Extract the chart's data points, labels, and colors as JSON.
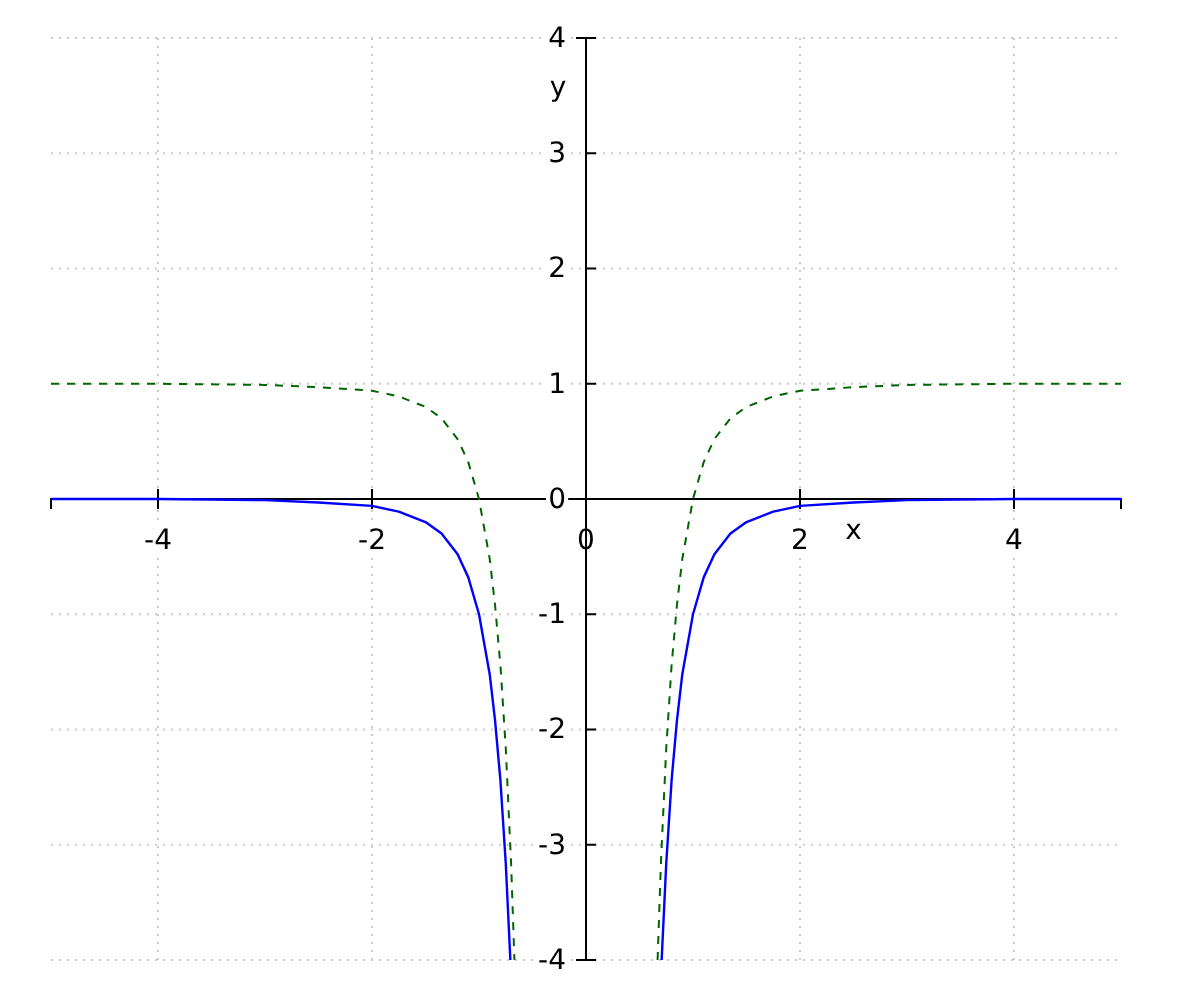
{
  "chart_data": {
    "type": "line",
    "xlabel": "x",
    "ylabel": "y",
    "xlim": [
      -5,
      5
    ],
    "ylim": [
      -4,
      4
    ],
    "xticks": [
      -4,
      -2,
      0,
      2,
      4
    ],
    "yticks": [
      -4,
      -3,
      -2,
      -1,
      0,
      1,
      2,
      3,
      4
    ],
    "grid": true,
    "series": [
      {
        "color": "#0000ff",
        "line_style": "solid",
        "x": [
          -5,
          -4,
          -3,
          -2.5,
          -2,
          -1.75,
          -1.5,
          -1.35,
          -1.2,
          -1.1,
          -1,
          -0.9,
          -0.85,
          -0.8,
          -0.75,
          -0.707,
          0,
          0.707,
          0.75,
          0.8,
          0.85,
          0.9,
          1,
          1.1,
          1.2,
          1.35,
          1.5,
          1.75,
          2,
          2.5,
          3,
          4,
          5
        ],
        "values": [
          0,
          0,
          -0.01,
          -0.03,
          -0.06,
          -0.11,
          -0.2,
          -0.3,
          -0.48,
          -0.68,
          -1,
          -1.52,
          -1.92,
          -2.44,
          -3.16,
          -4,
          null,
          -4,
          -3.16,
          -2.44,
          -1.92,
          -1.52,
          -1,
          -0.68,
          -0.48,
          -0.3,
          -0.2,
          -0.11,
          -0.06,
          -0.03,
          -0.01,
          0,
          0
        ]
      },
      {
        "color": "#006400",
        "line_style": "dashed",
        "x": [
          -5,
          -4,
          -3,
          -2.5,
          -2,
          -1.75,
          -1.5,
          -1.35,
          -1.2,
          -1.1,
          -1,
          -0.9,
          -0.85,
          -0.8,
          -0.75,
          -0.7,
          -0.669,
          0,
          0.669,
          0.7,
          0.75,
          0.8,
          0.85,
          0.9,
          1,
          1.1,
          1.2,
          1.35,
          1.5,
          1.75,
          2,
          2.5,
          3,
          4,
          5
        ],
        "values": [
          1,
          1,
          0.99,
          0.97,
          0.94,
          0.89,
          0.8,
          0.7,
          0.52,
          0.32,
          0,
          -0.52,
          -0.92,
          -1.44,
          -2.16,
          -3.16,
          -4,
          null,
          -4,
          -3.16,
          -2.16,
          -1.44,
          -0.92,
          -0.52,
          0,
          0.32,
          0.52,
          0.7,
          0.8,
          0.89,
          0.94,
          0.97,
          0.99,
          1,
          1
        ]
      }
    ]
  }
}
